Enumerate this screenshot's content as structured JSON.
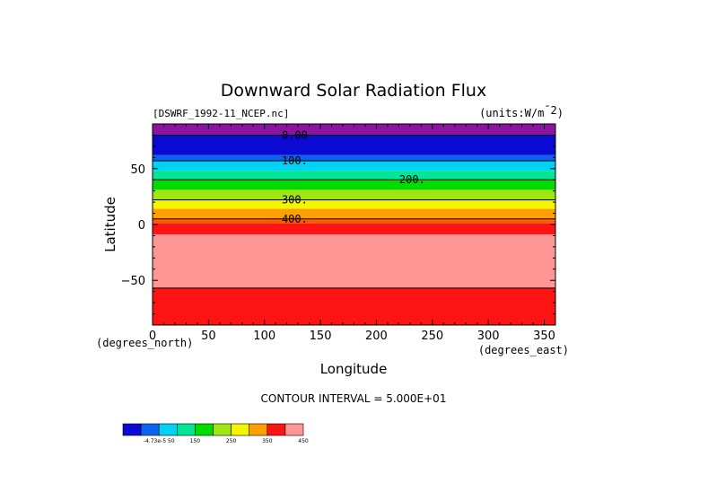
{
  "chart_data": {
    "type": "heatmap",
    "title": "Downward Solar Radiation Flux",
    "file_label": "[DSWRF_1992-11_NCEP.nc]",
    "units_label": "(units:W/m^-2)",
    "xlabel": "Longitude",
    "ylabel": "Latitude",
    "x_unit_label": "(degrees_east)",
    "y_unit_label": "(degrees_north)",
    "xlim": [
      0,
      360
    ],
    "ylim": [
      -90,
      90
    ],
    "x_ticks": [
      0,
      50,
      100,
      150,
      200,
      250,
      300,
      350
    ],
    "y_ticks": [
      50,
      0,
      -50
    ],
    "contour_interval_text": "CONTOUR INTERVAL = 5.000E+01",
    "bands": [
      {
        "lat_min": 80,
        "lat_max": 90,
        "color": "#8c14a0"
      },
      {
        "lat_min": 62,
        "lat_max": 80,
        "color": "#0a0ad2"
      },
      {
        "lat_min": 57,
        "lat_max": 62,
        "color": "#0a64f0"
      },
      {
        "lat_min": 48,
        "lat_max": 57,
        "color": "#00d2f5"
      },
      {
        "lat_min": 40,
        "lat_max": 48,
        "color": "#00e696"
      },
      {
        "lat_min": 31,
        "lat_max": 40,
        "color": "#00dc00"
      },
      {
        "lat_min": 22,
        "lat_max": 31,
        "color": "#a0e614"
      },
      {
        "lat_min": 14,
        "lat_max": 22,
        "color": "#f5f500"
      },
      {
        "lat_min": 5,
        "lat_max": 14,
        "color": "#ffa000"
      },
      {
        "lat_min": 1,
        "lat_max": 5,
        "color": "#ff5a00"
      },
      {
        "lat_min": -9,
        "lat_max": 1,
        "color": "#ff1414"
      },
      {
        "lat_min": -57,
        "lat_max": -9,
        "color": "#ff9696"
      },
      {
        "lat_min": -90,
        "lat_max": -57,
        "color": "#ff1414"
      }
    ],
    "contour_lines": [
      {
        "lat": 80,
        "label": "0.00",
        "label_lon": 127
      },
      {
        "lat": 57,
        "label": "100.",
        "label_lon": 127
      },
      {
        "lat": 40,
        "label": "200.",
        "label_lon": 232
      },
      {
        "lat": 22,
        "label": "300.",
        "label_lon": 127
      },
      {
        "lat": 5,
        "label": "400.",
        "label_lon": 127
      },
      {
        "lat": -57,
        "label": "",
        "label_lon": 0
      }
    ],
    "colorbar": {
      "colors": [
        "#0a0ad2",
        "#0a64f0",
        "#00d2f5",
        "#00e696",
        "#00dc00",
        "#a0e614",
        "#f5f500",
        "#ffa000",
        "#ff1414",
        "#ff9696"
      ],
      "labels": [
        {
          "text": "-4.73e-5 50",
          "after_index": 1
        },
        {
          "text": "150",
          "after_index": 3
        },
        {
          "text": "250",
          "after_index": 5
        },
        {
          "text": "350",
          "after_index": 7
        },
        {
          "text": "450",
          "after_index": 9
        }
      ]
    }
  }
}
